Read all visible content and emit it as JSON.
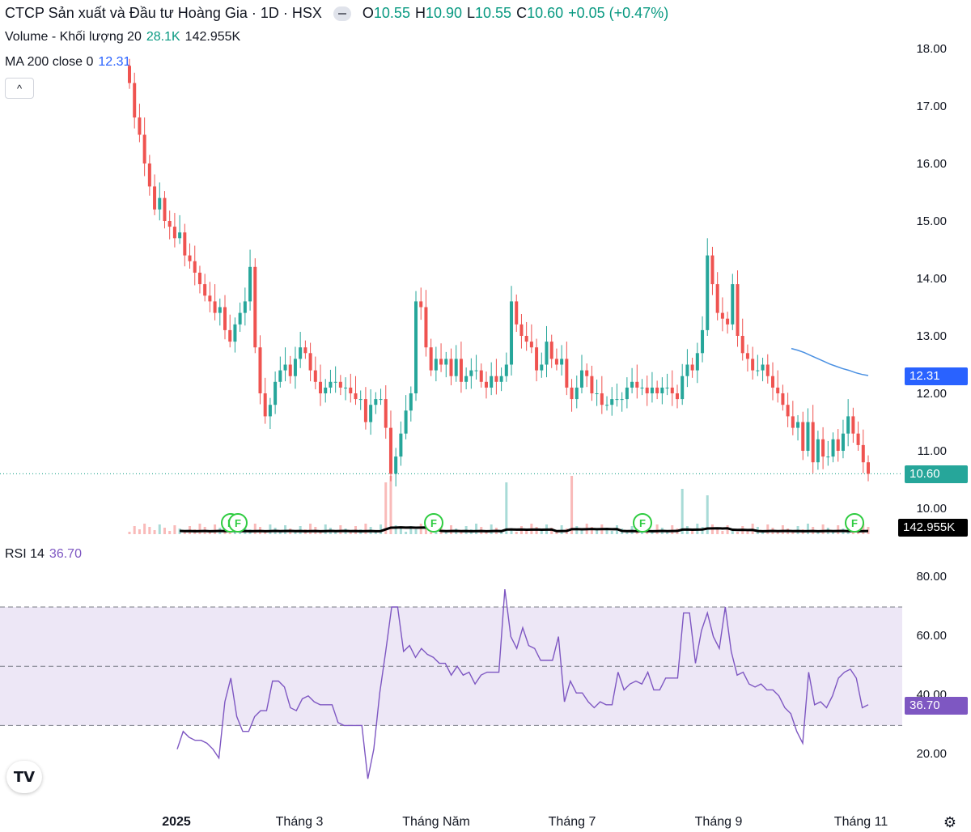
{
  "header": {
    "title": "CTCP Sản xuất và Đầu tư Hoàng Gia · 1D · HSX",
    "ohlc": [
      {
        "label": "O",
        "value": "10.55"
      },
      {
        "label": "H",
        "value": "10.90"
      },
      {
        "label": "L",
        "value": "10.55"
      },
      {
        "label": "C",
        "value": "10.60"
      }
    ],
    "change": "+0.05 (+0.47%)"
  },
  "volume_legend": {
    "label": "Volume - Khối lượng 20",
    "value1": "28.1K",
    "value2": "142.955K"
  },
  "ma_legend": {
    "label": "MA 200 close 0",
    "value": "12.31"
  },
  "collapse_label": "^",
  "price_axis": {
    "ticks": [
      "18.00",
      "17.00",
      "16.00",
      "15.00",
      "14.00",
      "13.00",
      "12.00",
      "11.00",
      "10.00"
    ]
  },
  "price_tags": {
    "ma": "12.31",
    "last": "10.60",
    "volume": "142.955K"
  },
  "rsi_legend": {
    "label": "RSI 14",
    "value": "36.70"
  },
  "rsi_axis": {
    "ticks": [
      "80.00",
      "60.00",
      "40.00",
      "20.00"
    ]
  },
  "rsi_tag": "36.70",
  "time_axis": [
    "2025",
    "Tháng 3",
    "Tháng Năm",
    "Tháng 7",
    "Tháng 9",
    "Tháng 11"
  ],
  "markers": [
    "F",
    "F",
    "F",
    "F",
    "F"
  ],
  "logo_text": "TV",
  "colors": {
    "up": "#26a69a",
    "down": "#ef5350",
    "ma": "#2962ff",
    "rsi": "#7e57c2",
    "rsi_band": "#ede7f6",
    "vol_ma": "#000000"
  },
  "chart_data": [
    {
      "type": "candlestick",
      "title": "CTCP Sản xuất và Đầu tư Hoàng Gia · 1D · HSX",
      "ylim": [
        9.6,
        18.2
      ],
      "close": [
        17.4,
        16.8,
        16.5,
        16.0,
        15.6,
        15.2,
        15.4,
        15.0,
        14.9,
        14.7,
        14.8,
        14.4,
        14.3,
        14.1,
        13.9,
        13.7,
        13.6,
        13.4,
        13.5,
        13.1,
        12.9,
        13.2,
        13.4,
        13.6,
        14.2,
        12.8,
        12.0,
        11.6,
        11.8,
        12.2,
        12.4,
        12.5,
        12.3,
        12.6,
        12.8,
        12.7,
        12.4,
        12.2,
        12.0,
        12.1,
        12.2,
        12.2,
        12.1,
        12.1,
        12.0,
        11.9,
        11.9,
        11.5,
        11.8,
        11.9,
        11.9,
        11.4,
        10.6,
        10.9,
        11.3,
        11.7,
        12.0,
        13.6,
        13.5,
        12.8,
        12.4,
        12.6,
        12.5,
        12.6,
        12.3,
        12.6,
        12.2,
        12.3,
        12.4,
        12.4,
        12.2,
        12.1,
        12.3,
        12.2,
        12.3,
        12.5,
        13.6,
        13.2,
        13.0,
        12.9,
        12.8,
        12.4,
        12.5,
        12.9,
        12.6,
        12.5,
        12.6,
        12.1,
        11.9,
        12.1,
        12.4,
        12.3,
        12.0,
        12.0,
        11.8,
        11.8,
        11.9,
        11.9,
        11.9,
        12.1,
        12.2,
        12.1,
        12.1,
        12.0,
        12.1,
        12.0,
        12.1,
        12.1,
        12.0,
        11.9,
        12.3,
        12.5,
        12.4,
        12.7,
        13.1,
        14.4,
        13.9,
        13.4,
        13.3,
        13.2,
        13.9,
        13.0,
        12.7,
        12.6,
        12.4,
        12.4,
        12.5,
        12.3,
        12.1,
        12.0,
        11.8,
        11.6,
        11.4,
        11.5,
        11.0,
        11.5,
        10.8,
        11.2,
        10.9,
        10.9,
        11.2,
        11.0,
        11.3,
        11.6,
        11.3,
        11.1,
        10.8,
        10.6
      ],
      "ma200": [
        12.78,
        12.75,
        12.71,
        12.66,
        12.61,
        12.56,
        12.51,
        12.47,
        12.43,
        12.4,
        12.36,
        12.33,
        12.31
      ]
    },
    {
      "type": "line",
      "title": "RSI 14",
      "ylim": [
        10,
        90
      ],
      "bands": [
        30,
        50,
        70
      ],
      "values": [
        22,
        28,
        26,
        25,
        25,
        24,
        22,
        19,
        38,
        46,
        33,
        28,
        28,
        33,
        35,
        35,
        45,
        45,
        43,
        36,
        35,
        39,
        40,
        38,
        37,
        37,
        37,
        31,
        30,
        30,
        30,
        30,
        12,
        22,
        41,
        55,
        70,
        70,
        55,
        57,
        53,
        56,
        54,
        53,
        51,
        51,
        47,
        50,
        47,
        48,
        44,
        47,
        48,
        48,
        48,
        76,
        60,
        56,
        63,
        57,
        56,
        52,
        52,
        52,
        60,
        38,
        45,
        41,
        41,
        38,
        36,
        38,
        37,
        37,
        48,
        42,
        44,
        45,
        44,
        48,
        42,
        42,
        46,
        46,
        46,
        68,
        68,
        51,
        62,
        68,
        60,
        56,
        70,
        55,
        47,
        48,
        44,
        43,
        44,
        42,
        42,
        40,
        36,
        34,
        28,
        24,
        48,
        37,
        38,
        36,
        40,
        46,
        48,
        49,
        46,
        36,
        37
      ]
    }
  ]
}
